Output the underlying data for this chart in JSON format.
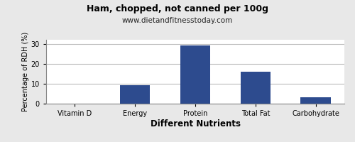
{
  "title": "Ham, chopped, not canned per 100g",
  "subtitle": "www.dietandfitnesstoday.com",
  "xlabel": "Different Nutrients",
  "ylabel": "Percentage of RDH (%)",
  "categories": [
    "Vitamin D",
    "Energy",
    "Protein",
    "Total Fat",
    "Carbohydrate"
  ],
  "values": [
    0,
    9.2,
    29.2,
    16.0,
    3.2
  ],
  "bar_color": "#2d4b8e",
  "ylim": [
    0,
    32
  ],
  "yticks": [
    0,
    10,
    20,
    30
  ],
  "background_color": "#e8e8e8",
  "plot_background": "#ffffff",
  "grid_color": "#bbbbbb",
  "title_fontsize": 9,
  "subtitle_fontsize": 7.5,
  "tick_fontsize": 7,
  "xlabel_fontsize": 8.5,
  "ylabel_fontsize": 7
}
